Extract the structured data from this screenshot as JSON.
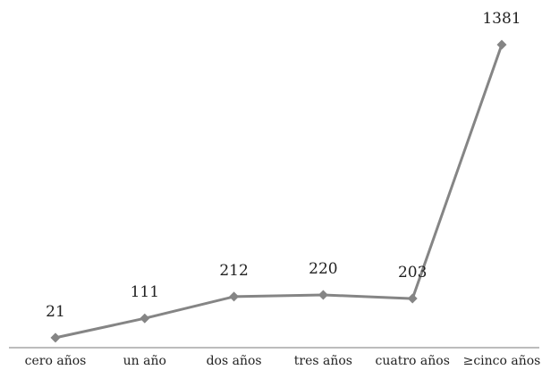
{
  "chart_data": {
    "type": "line",
    "categories": [
      "cero años",
      "un año",
      "dos años",
      "tres años",
      "cuatro años",
      "≥cinco años"
    ],
    "series": [
      {
        "values": [
          21,
          111,
          212,
          220,
          203,
          1381
        ]
      }
    ],
    "data_labels": [
      "21",
      "111",
      "212",
      "220",
      "203",
      "1381"
    ],
    "ylim": [
      0,
      1381
    ],
    "grid": false,
    "legend": "none",
    "colors": {
      "line": "#858585",
      "axis": "#7a7a7a",
      "text": "#222222"
    }
  }
}
